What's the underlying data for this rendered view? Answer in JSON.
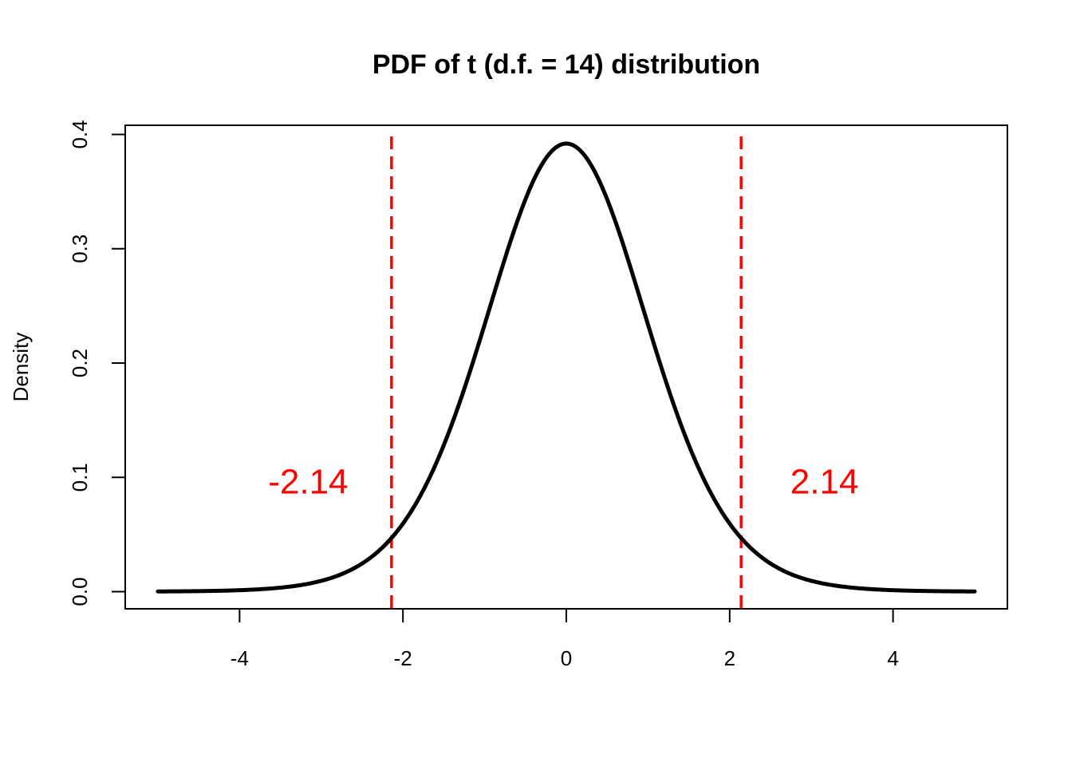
{
  "chart_data": {
    "type": "line",
    "title": "PDF of t (d.f. = 14) distribution",
    "xlabel": "",
    "ylabel": "Density",
    "xlim": [
      -5.4,
      5.4
    ],
    "ylim": [
      -0.015,
      0.408
    ],
    "x_ticks": [
      -4,
      -2,
      0,
      2,
      4
    ],
    "x_tick_labels": [
      "-4",
      "-2",
      "0",
      "2",
      "4"
    ],
    "y_ticks": [
      0.0,
      0.1,
      0.2,
      0.3,
      0.4
    ],
    "y_tick_labels": [
      "0.0",
      "0.1",
      "0.2",
      "0.3",
      "0.4"
    ],
    "series": [
      {
        "color": "#000000",
        "x": [
          -5.0,
          -4.5,
          -4.0,
          -3.5,
          -3.0,
          -2.75,
          -2.5,
          -2.25,
          -2.0,
          -1.75,
          -1.5,
          -1.25,
          -1.0,
          -0.75,
          -0.5,
          -0.25,
          0.0,
          0.25,
          0.5,
          0.75,
          1.0,
          1.25,
          1.5,
          1.75,
          2.0,
          2.25,
          2.5,
          2.75,
          3.0,
          3.5,
          4.0,
          4.5,
          5.0
        ],
        "y": [
          0.0006,
          0.0012,
          0.0027,
          0.0058,
          0.0123,
          0.0183,
          0.0263,
          0.037,
          0.0577,
          0.087,
          0.1237,
          0.169,
          0.223,
          0.277,
          0.333,
          0.375,
          0.392,
          0.375,
          0.333,
          0.277,
          0.223,
          0.169,
          0.1237,
          0.087,
          0.0577,
          0.037,
          0.0263,
          0.0183,
          0.0123,
          0.0058,
          0.0027,
          0.0012,
          0.0006
        ]
      }
    ],
    "reference_lines": [
      {
        "x": -2.14,
        "color": "#ff0000",
        "style": "dashed"
      },
      {
        "x": 2.14,
        "color": "#ff0000",
        "style": "dashed"
      }
    ],
    "annotations": [
      {
        "text": "-2.14",
        "x": -3.16,
        "y": 0.097,
        "color": "#ff0000"
      },
      {
        "text": "2.14",
        "x": 3.16,
        "y": 0.097,
        "color": "#ff0000"
      }
    ],
    "grid": false,
    "legend": "none"
  }
}
